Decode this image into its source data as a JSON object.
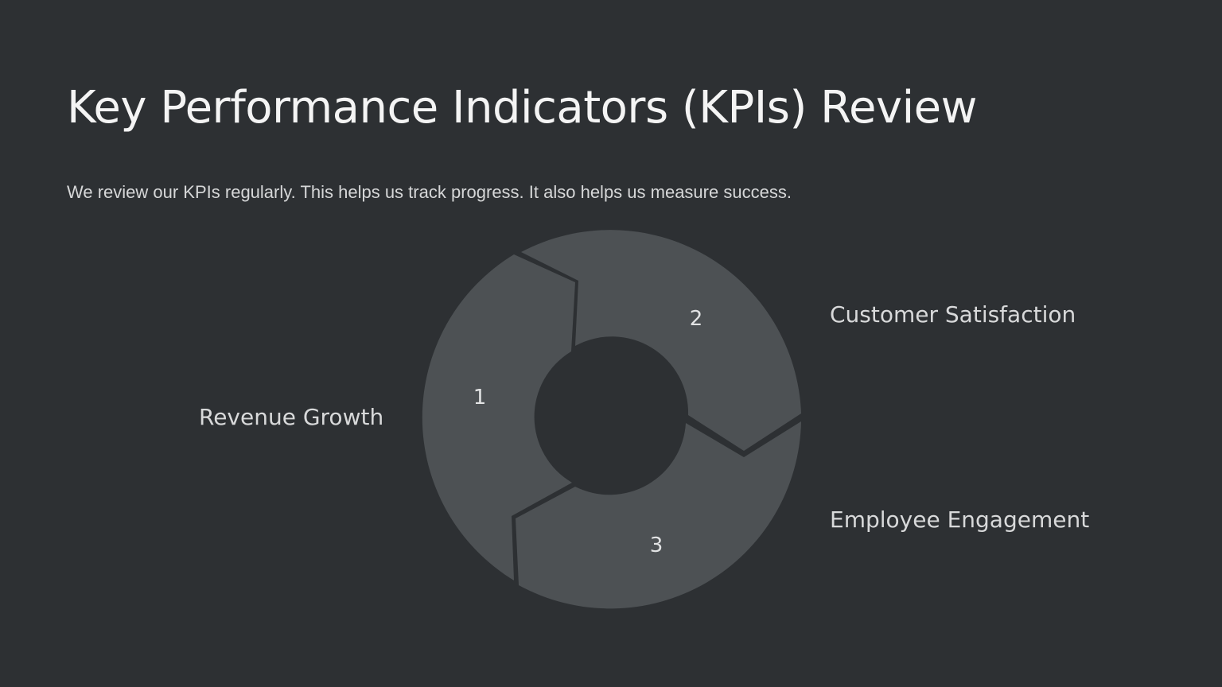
{
  "slide": {
    "title": "Key Performance Indicators (KPIs) Review",
    "subtitle": "We review our KPIs regularly. This helps us track progress. It also helps us measure success."
  },
  "cycle": {
    "segments": [
      {
        "number": "1",
        "label": "Revenue Growth"
      },
      {
        "number": "2",
        "label": "Customer Satisfaction"
      },
      {
        "number": "3",
        "label": "Employee Engagement"
      }
    ]
  },
  "colors": {
    "background": "#2d3033",
    "segment_fill": "#4d5154",
    "text": "#e6e7e8"
  }
}
